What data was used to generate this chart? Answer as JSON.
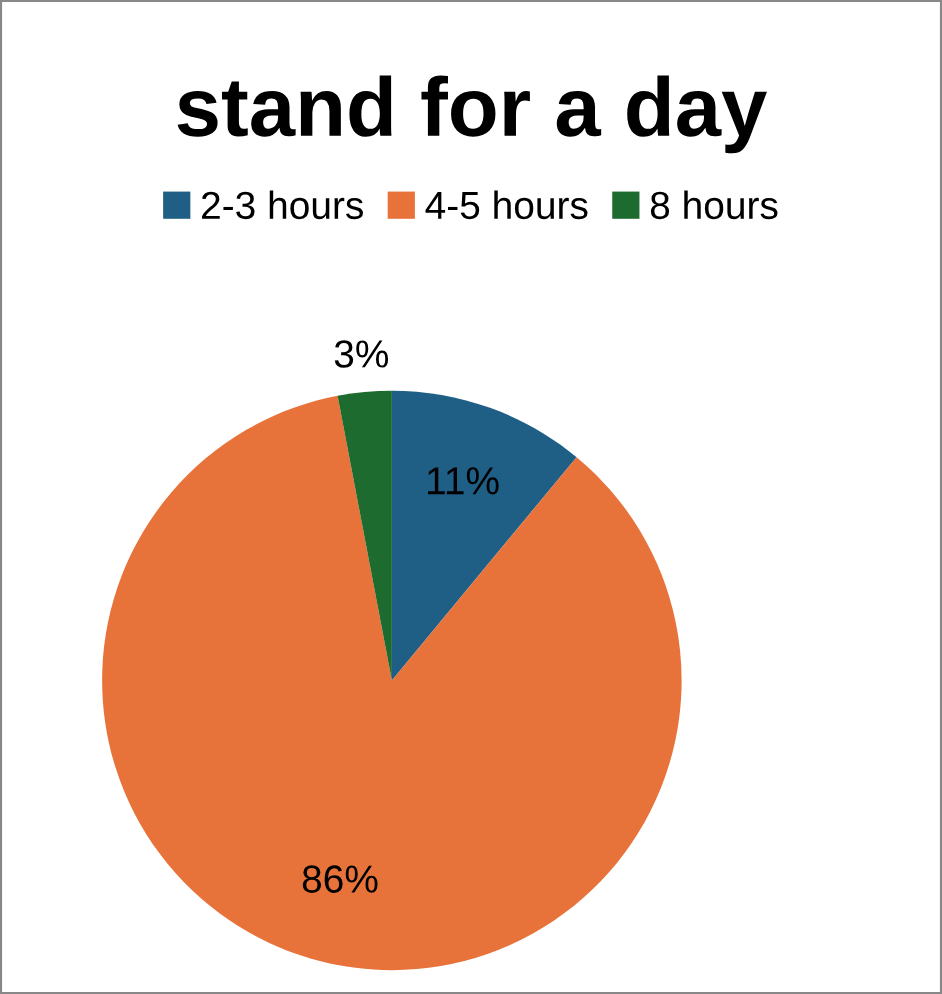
{
  "chart_data": {
    "type": "pie",
    "title": "stand for a day",
    "categories": [
      "2-3 hours",
      "4-5 hours",
      "8 hours"
    ],
    "values": [
      11,
      86,
      3
    ],
    "colors": [
      "#1f5f86",
      "#e8733a",
      "#1e6b2f"
    ],
    "value_labels": [
      "11%",
      "86%",
      "3%"
    ],
    "legend": "top"
  }
}
